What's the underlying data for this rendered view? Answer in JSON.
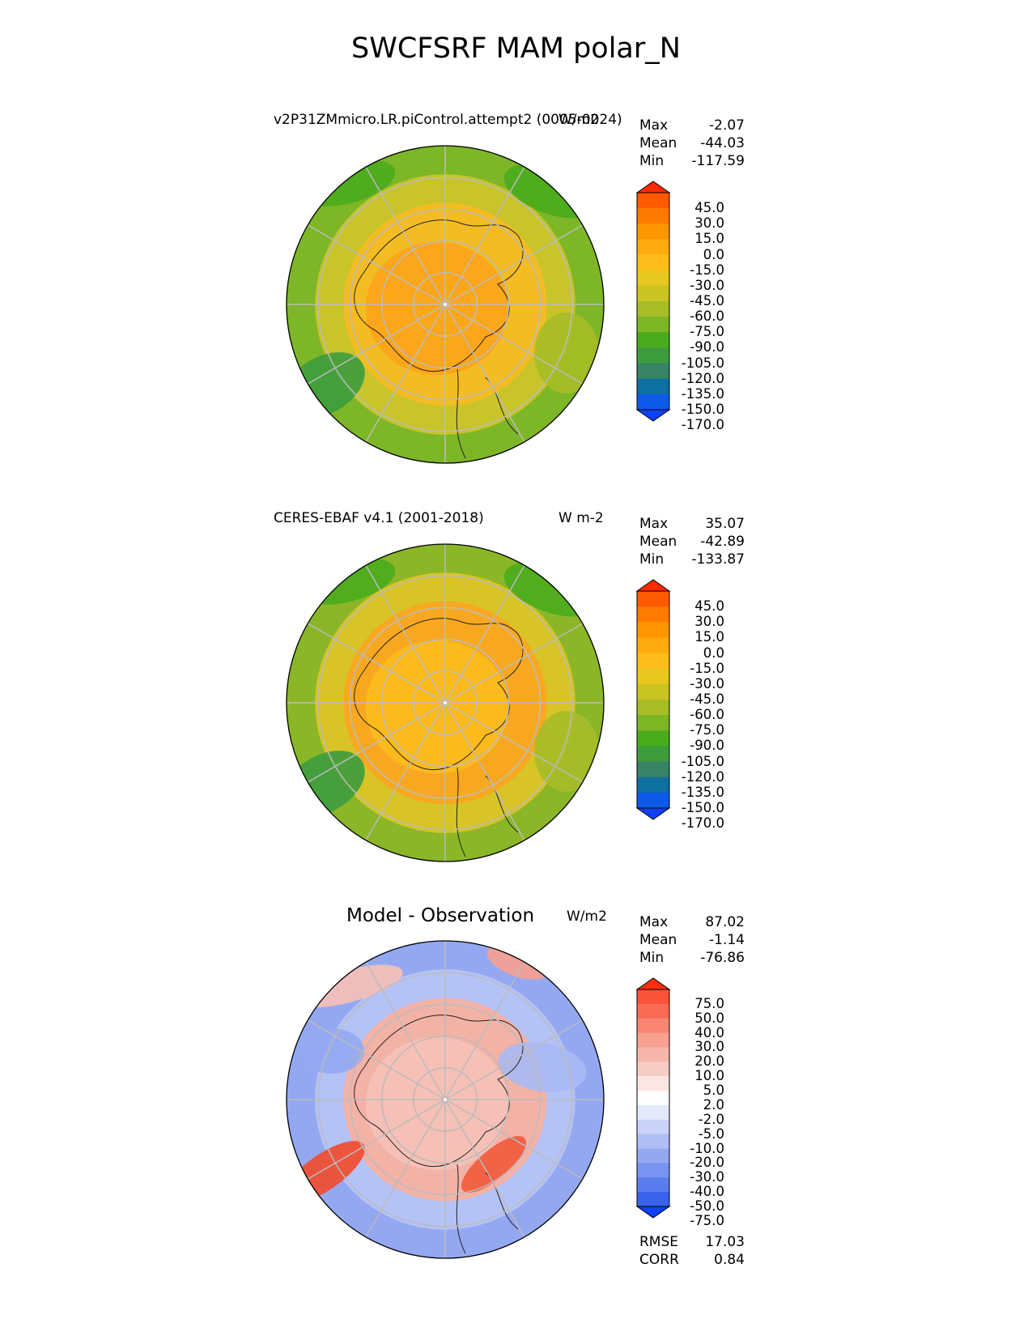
{
  "figure": {
    "title": "SWCFSRF MAM polar_N"
  },
  "chart_data": [
    {
      "type": "heatmap",
      "projection": "north-polar-stereographic",
      "title": "v2P31ZMmicro.LR.piControl.attempt2 (0005-0024)",
      "units": "W/m2",
      "stats": {
        "max": "-2.07",
        "mean": "-44.03",
        "min": "-117.59"
      },
      "colorbar": {
        "ticks": [
          "45.0",
          "30.0",
          "15.0",
          "0.0",
          "-15.0",
          "-30.0",
          "-45.0",
          "-60.0",
          "-75.0",
          "-90.0",
          "-105.0",
          "-120.0",
          "-135.0",
          "-150.0",
          "-170.0"
        ],
        "colors": [
          "#ff2a00",
          "#ff5a00",
          "#ff7a00",
          "#ff9500",
          "#ffaa0e",
          "#fcbc19",
          "#e8c720",
          "#c9c423",
          "#a6bd27",
          "#7db625",
          "#4aab1d",
          "#3d9c3e",
          "#378366",
          "#0e70a0",
          "#0d5ae8",
          "#1040ff"
        ],
        "extend": "both"
      },
      "field_note_colors": {
        "polar": "#fca61b",
        "mid": "#f4bc23",
        "outer": "#c8c42a",
        "edge": "#7db627"
      }
    },
    {
      "type": "heatmap",
      "projection": "north-polar-stereographic",
      "title": "CERES-EBAF v4.1 (2001-2018)",
      "units": "W m-2",
      "stats": {
        "max": "35.07",
        "mean": "-42.89",
        "min": "-133.87"
      },
      "colorbar": {
        "ticks": [
          "45.0",
          "30.0",
          "15.0",
          "0.0",
          "-15.0",
          "-30.0",
          "-45.0",
          "-60.0",
          "-75.0",
          "-90.0",
          "-105.0",
          "-120.0",
          "-135.0",
          "-150.0",
          "-170.0"
        ],
        "colors": [
          "#ff2a00",
          "#ff5a00",
          "#ff7a00",
          "#ff9500",
          "#ffaa0e",
          "#fcbc19",
          "#e8c720",
          "#c9c423",
          "#a6bd27",
          "#7db625",
          "#4aab1d",
          "#3d9c3e",
          "#378366",
          "#0e70a0",
          "#0d5ae8",
          "#1040ff"
        ],
        "extend": "both"
      },
      "field_note_colors": {
        "polar": "#fcba1d",
        "mid": "#f8a820",
        "outer": "#d8c426",
        "edge": "#8ab628"
      }
    },
    {
      "type": "heatmap",
      "projection": "north-polar-stereographic",
      "title": "Model - Observation",
      "units": "W/m2",
      "stats": {
        "max": "87.02",
        "mean": "-1.14",
        "min": "-76.86"
      },
      "metrics": {
        "rmse": "17.03",
        "corr": "0.84"
      },
      "colorbar": {
        "ticks": [
          "75.0",
          "50.0",
          "40.0",
          "30.0",
          "20.0",
          "10.0",
          "5.0",
          "2.0",
          "-2.0",
          "-5.0",
          "-10.0",
          "-20.0",
          "-30.0",
          "-40.0",
          "-50.0",
          "-75.0"
        ],
        "colors": [
          "#ff3010",
          "#f9533a",
          "#fa6b56",
          "#f88672",
          "#f7a090",
          "#f6b6aa",
          "#f6cec6",
          "#fbe6e2",
          "#ffffff",
          "#e4e8fb",
          "#cbd3f8",
          "#b0bef5",
          "#94a8f2",
          "#7893f0",
          "#5a7cee",
          "#3a63ed",
          "#1040ff"
        ],
        "extend": "both"
      },
      "field_note_colors": {
        "polar": "#f6c0b6",
        "mid": "#f3b2a6",
        "outer": "#b4c2f6",
        "edge": "#94a8f2"
      }
    }
  ],
  "labels": {
    "max": "Max",
    "mean": "Mean",
    "min": "Min",
    "rmse": "RMSE",
    "corr": "CORR"
  }
}
